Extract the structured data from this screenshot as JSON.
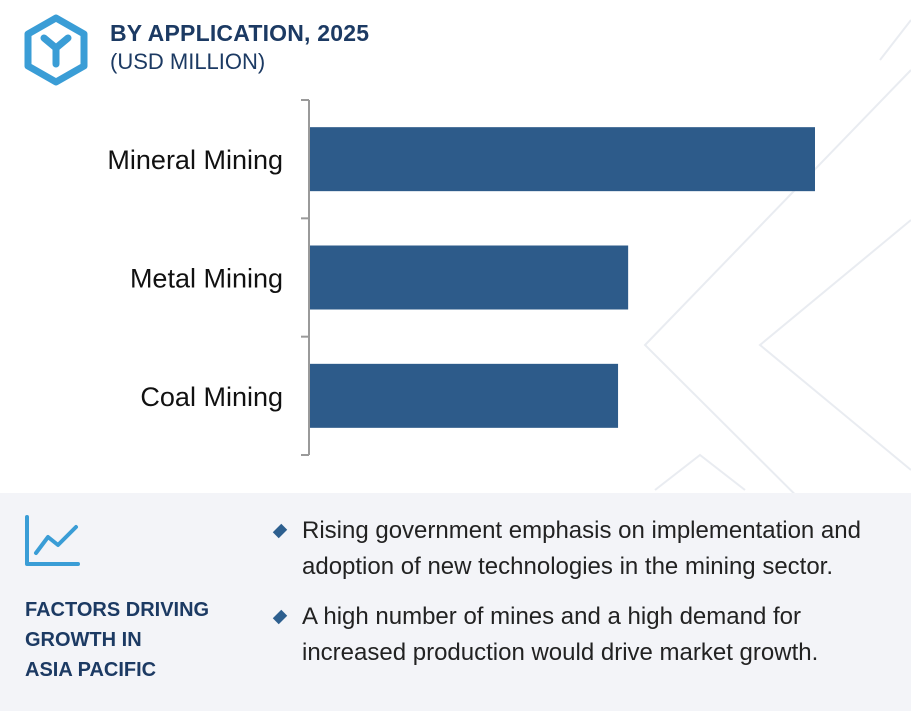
{
  "header": {
    "title": "BY APPLICATION, 2025",
    "subtitle": "(USD MILLION)",
    "logo_icon": "hexagon-y-logo-icon"
  },
  "chart_data": {
    "type": "bar",
    "orientation": "horizontal",
    "title": "BY APPLICATION, 2025",
    "subtitle": "(USD MILLION)",
    "categories": [
      "Mineral Mining",
      "Metal Mining",
      "Coal Mining"
    ],
    "values": [
      100,
      63,
      61
    ],
    "value_axis_labels_shown": false,
    "grid": false,
    "legend": "none",
    "bar_color": "#2d5b8a"
  },
  "factors": {
    "icon": "trend-line-icon",
    "title_lines": [
      "FACTORS DRIVING",
      "GROWTH IN",
      "ASIA PACIFIC"
    ],
    "bullets": [
      "Rising government emphasis on implementation and adoption of new technologies in the mining sector.",
      "A high number of mines and a high demand for increased production would drive market growth."
    ]
  },
  "colors": {
    "accent": "#2d5b8a",
    "heading": "#1c3a63",
    "logo": "#3a9dd6",
    "panel_bg": "#f3f4f8"
  }
}
